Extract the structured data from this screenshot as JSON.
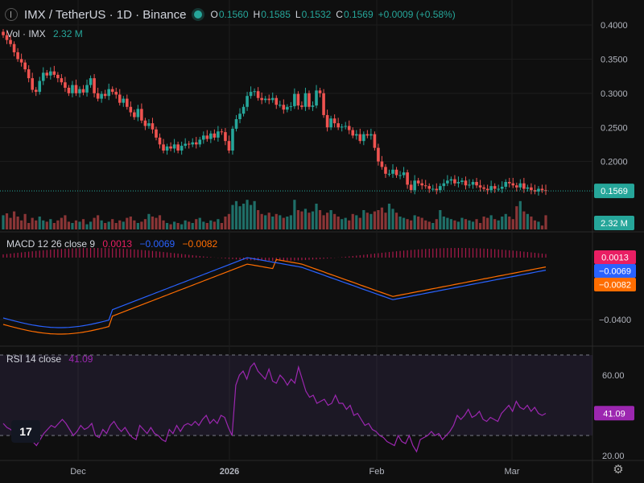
{
  "header": {
    "symbol": "IMX / TetherUS · 1D · Binance",
    "open_key": "O",
    "open": "0.1560",
    "high_key": "H",
    "high": "0.1585",
    "low_key": "L",
    "low": "0.1532",
    "close_key": "C",
    "close": "0.1569",
    "change": "+0.0009 (+0.58%)"
  },
  "volume_legend": {
    "title": "Vol · IMX",
    "value": "2.32 M"
  },
  "macd_legend": {
    "title": "MACD 12 26 close 9",
    "hist": "0.0013",
    "macd": "−0.0069",
    "signal": "−0.0082"
  },
  "rsi_legend": {
    "title": "RSI 14 close",
    "value": "41.09"
  },
  "colors": {
    "up": "#26a69a",
    "down": "#ef5350",
    "macd": "#2962ff",
    "signal": "#ff6d00",
    "rsi": "#9c27b0",
    "hist": "#e91e63"
  },
  "chart_data": [
    {
      "type": "candlestick",
      "title": "IMX / TetherUS · 1D · Binance",
      "y_ticks": [
        "0.4000",
        "0.3500",
        "0.3000",
        "0.2500",
        "0.2000"
      ],
      "ylim": [
        0.14,
        0.4
      ],
      "x_ticks": [
        "Dec",
        "2026",
        "Feb",
        "Mar"
      ],
      "last_price": "0.1569",
      "close_approx": [
        0.385,
        0.378,
        0.372,
        0.36,
        0.35,
        0.345,
        0.335,
        0.322,
        0.305,
        0.302,
        0.318,
        0.33,
        0.326,
        0.332,
        0.327,
        0.322,
        0.316,
        0.308,
        0.3,
        0.312,
        0.3,
        0.306,
        0.301,
        0.312,
        0.322,
        0.3,
        0.292,
        0.299,
        0.296,
        0.306,
        0.302,
        0.298,
        0.286,
        0.292,
        0.28,
        0.272,
        0.265,
        0.277,
        0.26,
        0.252,
        0.256,
        0.247,
        0.235,
        0.225,
        0.216,
        0.222,
        0.219,
        0.225,
        0.216,
        0.223,
        0.226,
        0.225,
        0.228,
        0.225,
        0.232,
        0.238,
        0.233,
        0.241,
        0.235,
        0.244,
        0.243,
        0.23,
        0.216,
        0.248,
        0.262,
        0.27,
        0.28,
        0.296,
        0.302,
        0.303,
        0.293,
        0.29,
        0.292,
        0.29,
        0.293,
        0.283,
        0.283,
        0.276,
        0.28,
        0.281,
        0.299,
        0.282,
        0.28,
        0.3,
        0.28,
        0.282,
        0.304,
        0.3,
        0.268,
        0.25,
        0.263,
        0.256,
        0.25,
        0.251,
        0.252,
        0.246,
        0.238,
        0.24,
        0.23,
        0.24,
        0.238,
        0.24,
        0.22,
        0.2,
        0.192,
        0.182,
        0.182,
        0.188,
        0.18,
        0.18,
        0.184,
        0.166,
        0.158,
        0.172,
        0.168,
        0.165,
        0.164,
        0.16,
        0.16,
        0.158,
        0.164,
        0.168,
        0.172,
        0.174,
        0.168,
        0.17,
        0.172,
        0.165,
        0.166,
        0.17,
        0.165,
        0.162,
        0.16,
        0.158,
        0.164,
        0.16,
        0.16,
        0.163,
        0.17,
        0.168,
        0.165,
        0.162,
        0.168,
        0.16,
        0.162,
        0.158,
        0.156,
        0.16,
        0.158,
        0.157
      ]
    },
    {
      "type": "bar",
      "title": "Vol · IMX",
      "last_value": "2.32 M"
    },
    {
      "type": "line",
      "title": "MACD 12 26 close 9",
      "y_ticks": [
        "−0.0400"
      ],
      "series": [
        {
          "name": "MACD",
          "last": "−0.0069"
        },
        {
          "name": "Signal",
          "last": "−0.0082"
        },
        {
          "name": "Histogram",
          "last": "0.0013"
        }
      ]
    },
    {
      "type": "line",
      "title": "RSI 14 close",
      "y_ticks": [
        "60.00",
        "20.00"
      ],
      "ylim": [
        20,
        80
      ],
      "levels": [
        70,
        30
      ],
      "last_value": "41.09",
      "values": [
        36,
        34,
        33,
        31,
        30,
        29,
        30,
        28,
        27,
        25,
        28,
        31,
        33,
        35,
        34,
        36,
        38,
        36,
        33,
        30,
        32,
        35,
        33,
        34,
        36,
        30,
        29,
        33,
        31,
        35,
        37,
        34,
        32,
        34,
        31,
        29,
        28,
        35,
        33,
        31,
        34,
        31,
        30,
        28,
        27,
        33,
        31,
        35,
        32,
        35,
        36,
        35,
        37,
        35,
        38,
        40,
        36,
        38,
        36,
        40,
        39,
        34,
        30,
        55,
        60,
        62,
        58,
        64,
        66,
        62,
        60,
        58,
        63,
        57,
        56,
        60,
        58,
        55,
        58,
        56,
        64,
        58,
        52,
        49,
        50,
        46,
        47,
        48,
        45,
        46,
        50,
        46,
        46,
        43,
        45,
        40,
        41,
        38,
        35,
        36,
        33,
        32,
        30,
        29,
        27,
        26,
        25,
        30,
        27,
        26,
        30,
        25,
        22,
        28,
        29,
        30,
        32,
        30,
        31,
        28,
        30,
        32,
        35,
        40,
        38,
        40,
        43,
        39,
        40,
        42,
        38,
        37,
        39,
        38,
        37,
        41,
        43,
        45,
        42,
        47,
        44,
        43,
        45,
        42,
        44,
        41,
        40,
        41
      ]
    }
  ]
}
